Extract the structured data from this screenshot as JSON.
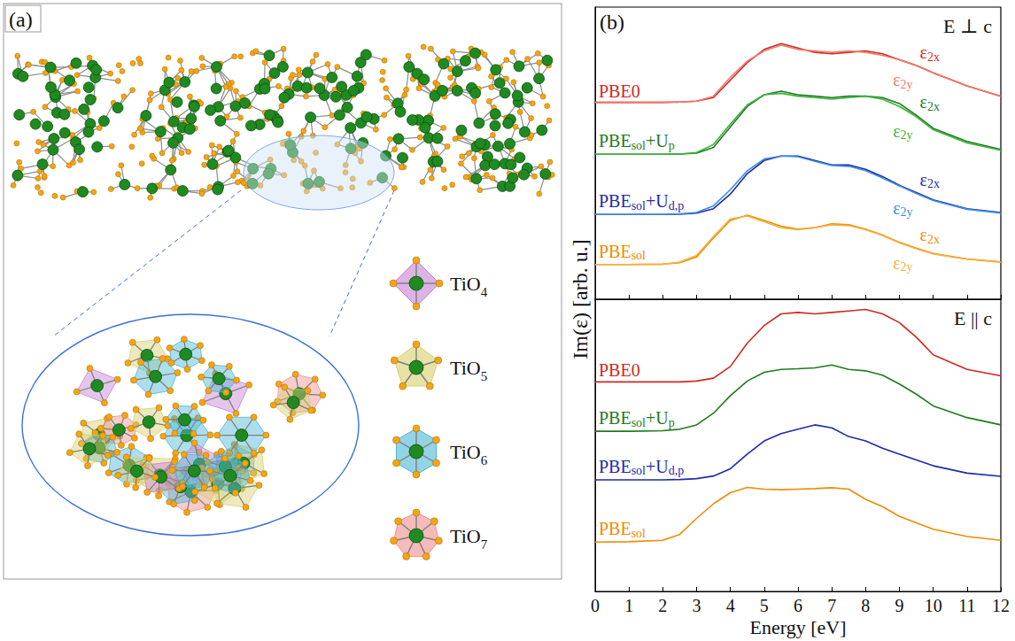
{
  "panel_a": {
    "label": "(a)",
    "polyhedra": [
      {
        "name": [
          "TiO",
          "4"
        ],
        "color": "#c67fd3"
      },
      {
        "name": [
          "TiO",
          "5"
        ],
        "color": "#d8cf70"
      },
      {
        "name": [
          "TiO",
          "6"
        ],
        "color": "#49b6d6"
      },
      {
        "name": [
          "TiO",
          "7"
        ],
        "color": "#ef8d8d"
      }
    ]
  },
  "chart_data": [
    {
      "type": "line",
      "panel_label": "(b)",
      "annotation": "E ⊥ c",
      "y_label": "Im(ε) [arb. u.]",
      "x": [
        0,
        1,
        2,
        2.5,
        3,
        3.5,
        4,
        4.5,
        5,
        5.5,
        6,
        6.5,
        7,
        7.5,
        8,
        8.5,
        9,
        9.5,
        10,
        11,
        12
      ],
      "xlim": [
        0,
        12
      ],
      "xticks": [
        0,
        1,
        2,
        3,
        4,
        5,
        6,
        7,
        8,
        9,
        10,
        11,
        12
      ],
      "ylim": [
        0,
        10
      ],
      "tick_labels": false,
      "groups": [
        {
          "name": [
            "PBE0"
          ],
          "series": [
            {
              "label": [
                "ε",
                "2x"
              ],
              "color": "#d0281e",
              "values": [
                6.74,
                6.74,
                6.74,
                6.75,
                6.78,
                6.9,
                7.5,
                8.1,
                8.55,
                8.75,
                8.6,
                8.45,
                8.4,
                8.45,
                8.5,
                8.4,
                8.2,
                8.0,
                7.75,
                7.3,
                6.95
              ]
            },
            {
              "label": [
                "ε",
                "2y"
              ],
              "color": "#f07a6a",
              "values": [
                6.74,
                6.74,
                6.74,
                6.75,
                6.78,
                6.95,
                7.6,
                8.15,
                8.5,
                8.7,
                8.55,
                8.5,
                8.45,
                8.5,
                8.45,
                8.35,
                8.2,
                8.0,
                7.75,
                7.3,
                6.95
              ]
            }
          ]
        },
        {
          "name": [
            "PBE",
            "sol",
            "+U",
            "p"
          ],
          "series": [
            {
              "label": [
                "ε",
                "2x"
              ],
              "color": "#1f7a1f",
              "values": [
                4.96,
                4.96,
                4.96,
                4.97,
                5.0,
                5.2,
                5.9,
                6.6,
                7.0,
                7.12,
                7.0,
                6.95,
                6.9,
                6.95,
                6.95,
                6.9,
                6.7,
                6.3,
                5.85,
                5.4,
                5.13
              ]
            },
            {
              "label": [
                "ε",
                "2y"
              ],
              "color": "#3cb43c",
              "values": [
                4.96,
                4.96,
                4.96,
                4.97,
                5.02,
                5.3,
                6.0,
                6.65,
                7.0,
                7.05,
                6.95,
                6.9,
                6.85,
                6.9,
                6.95,
                6.85,
                6.6,
                6.25,
                5.8,
                5.35,
                5.1
              ]
            }
          ]
        },
        {
          "name": [
            "PBE",
            "sol",
            "+U",
            "d,p"
          ],
          "series": [
            {
              "label": [
                "ε",
                "2x"
              ],
              "color": "#1f2aa8",
              "values": [
                2.9,
                2.9,
                2.9,
                2.91,
                2.95,
                3.1,
                3.6,
                4.3,
                4.75,
                4.9,
                4.9,
                4.75,
                4.6,
                4.6,
                4.45,
                4.2,
                3.9,
                3.65,
                3.4,
                3.1,
                2.97
              ]
            },
            {
              "label": [
                "ε",
                "2y"
              ],
              "color": "#3a8ee0",
              "values": [
                2.9,
                2.9,
                2.9,
                2.92,
                2.97,
                3.2,
                3.75,
                4.4,
                4.8,
                4.9,
                4.88,
                4.72,
                4.58,
                4.55,
                4.4,
                4.15,
                3.88,
                3.62,
                3.38,
                3.08,
                2.95
              ]
            }
          ]
        },
        {
          "name": [
            "PBE",
            "sol"
          ],
          "series": [
            {
              "label": [
                "ε",
                "2x"
              ],
              "color": "#f08c00",
              "values": [
                1.19,
                1.19,
                1.2,
                1.25,
                1.45,
                2.1,
                2.7,
                2.88,
                2.7,
                2.5,
                2.4,
                2.45,
                2.58,
                2.55,
                2.4,
                2.2,
                1.95,
                1.75,
                1.57,
                1.38,
                1.28
              ]
            },
            {
              "label": [
                "ε",
                "2y"
              ],
              "color": "#f5b041",
              "values": [
                1.19,
                1.19,
                1.2,
                1.27,
                1.5,
                2.15,
                2.75,
                2.85,
                2.65,
                2.45,
                2.38,
                2.45,
                2.55,
                2.52,
                2.38,
                2.18,
                1.93,
                1.73,
                1.55,
                1.37,
                1.27
              ]
            }
          ]
        }
      ]
    },
    {
      "type": "line",
      "annotation": "E || c",
      "x_label": "Energy [eV]",
      "x": [
        0,
        1,
        2,
        2.5,
        3,
        3.5,
        4,
        4.5,
        5,
        5.5,
        6,
        6.5,
        7,
        7.5,
        8,
        8.5,
        9,
        9.5,
        10,
        11,
        12
      ],
      "xlim": [
        0,
        12
      ],
      "xticks": [
        0,
        1,
        2,
        3,
        4,
        5,
        6,
        7,
        8,
        9,
        10,
        11,
        12
      ],
      "ylim": [
        0,
        10
      ],
      "tick_labels": "x",
      "groups": [
        {
          "name": [
            "PBE0"
          ],
          "series": [
            {
              "color": "#d0281e",
              "values": [
                7.17,
                7.17,
                7.17,
                7.17,
                7.2,
                7.3,
                7.7,
                8.5,
                9.1,
                9.5,
                9.55,
                9.5,
                9.55,
                9.6,
                9.65,
                9.5,
                9.2,
                8.7,
                8.1,
                7.6,
                7.38
              ]
            }
          ]
        },
        {
          "name": [
            "PBE",
            "sol",
            "+U",
            "p"
          ],
          "series": [
            {
              "color": "#1f7a1f",
              "values": [
                5.48,
                5.48,
                5.5,
                5.55,
                5.7,
                6.1,
                6.7,
                7.2,
                7.5,
                7.6,
                7.62,
                7.65,
                7.75,
                7.6,
                7.55,
                7.4,
                7.1,
                6.75,
                6.35,
                5.95,
                5.7
              ]
            }
          ]
        },
        {
          "name": [
            "PBE",
            "sol",
            "+U",
            "d,p"
          ],
          "series": [
            {
              "color": "#1f2aa8",
              "values": [
                3.82,
                3.82,
                3.82,
                3.83,
                3.86,
                3.95,
                4.2,
                4.7,
                5.15,
                5.4,
                5.55,
                5.7,
                5.6,
                5.3,
                5.15,
                4.9,
                4.7,
                4.5,
                4.3,
                4.05,
                3.94
              ]
            }
          ]
        },
        {
          "name": [
            "PBE",
            "sol"
          ],
          "series": [
            {
              "color": "#f08c00",
              "values": [
                1.69,
                1.7,
                1.75,
                1.95,
                2.5,
                3.0,
                3.38,
                3.56,
                3.5,
                3.48,
                3.5,
                3.52,
                3.55,
                3.5,
                3.15,
                2.9,
                2.57,
                2.35,
                2.13,
                1.88,
                1.75
              ]
            }
          ]
        }
      ]
    }
  ]
}
